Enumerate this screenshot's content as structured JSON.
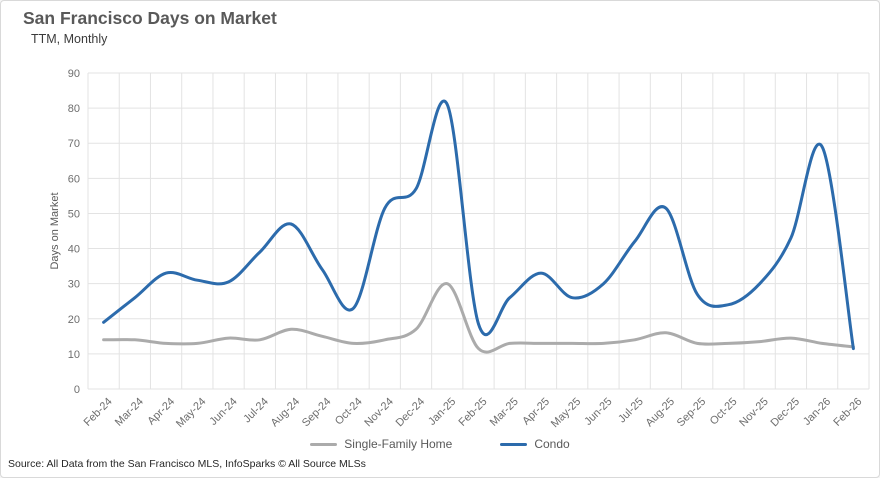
{
  "header": {
    "title": "San Francisco Days on Market",
    "subtitle": "TTM, Monthly"
  },
  "source_note": "Source: All Data from the San Francisco MLS, InfoSparks © All Source MLSs",
  "colors": {
    "condo_line": "#2c6bac",
    "single_family_line": "#ababab",
    "gridline": "#e3e3e3",
    "axis_text": "#6e6e6e",
    "title_text": "#595959"
  },
  "chart_data": {
    "type": "line",
    "title": "San Francisco Days on Market",
    "subtitle": "TTM, Monthly",
    "xlabel": "",
    "ylabel": "Days on Market",
    "ylim": [
      0,
      90
    ],
    "ytick_step": 10,
    "grid": true,
    "smooth": true,
    "legend_position": "bottom",
    "categories": [
      "Feb-24",
      "Mar-24",
      "Apr-24",
      "May-24",
      "Jun-24",
      "Jul-24",
      "Aug-24",
      "Sep-24",
      "Oct-24",
      "Nov-24",
      "Dec-24",
      "Jan-25",
      "Feb-25",
      "Mar-25",
      "Apr-25",
      "May-25",
      "Jun-25",
      "Jul-25",
      "Aug-25",
      "Sep-25",
      "Oct-25",
      "Nov-25",
      "Dec-25",
      "Jan-26",
      "Feb-26"
    ],
    "series": [
      {
        "name": "Single-Family Home",
        "color": "#ababab",
        "values": [
          14,
          14,
          13,
          13,
          14.5,
          14,
          17,
          15,
          13,
          14,
          17,
          30,
          11.5,
          13,
          13,
          13,
          13,
          14,
          16,
          13,
          13,
          13.5,
          14.5,
          13,
          12
        ]
      },
      {
        "name": "Condo",
        "color": "#2c6bac",
        "values": [
          19,
          26,
          33,
          31,
          30.5,
          39,
          47,
          34,
          23,
          51.5,
          57,
          81,
          18.5,
          26,
          33,
          26,
          30,
          42,
          51.5,
          27,
          24,
          30,
          43,
          69,
          11.5
        ]
      }
    ]
  }
}
